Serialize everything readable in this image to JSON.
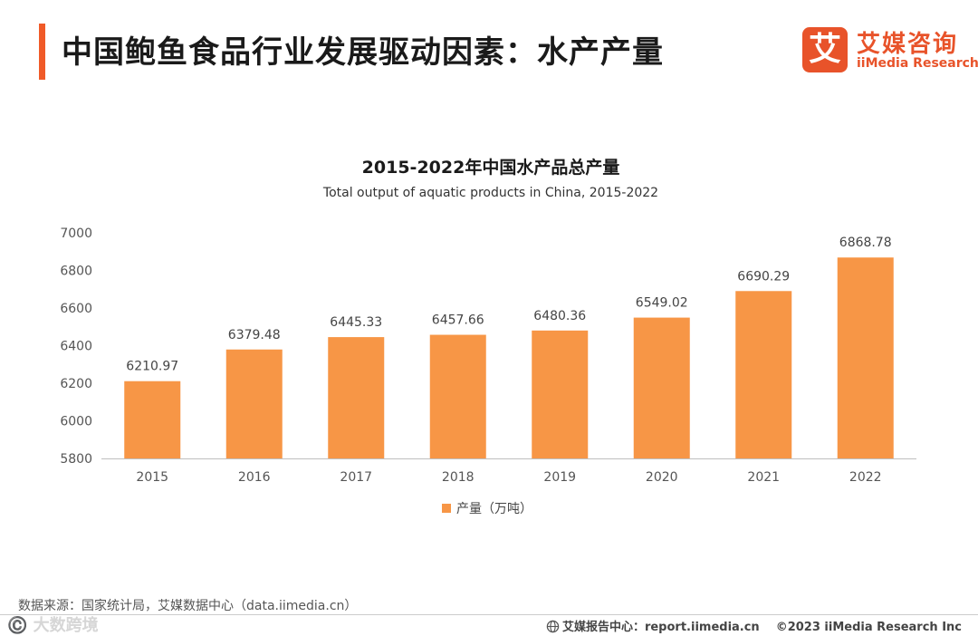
{
  "page": {
    "title": "中国鲍鱼食品行业发展驱动因素：水产产量",
    "accent_color": "#f05a28"
  },
  "logo": {
    "mark": "艾",
    "name_cn": "艾媒咨询",
    "name_en": "iiMedia Research",
    "color": "#e8532a"
  },
  "chart_data": {
    "type": "bar",
    "title": "2015-2022年中国水产品总产量",
    "subtitle": "Total output of aquatic products in China, 2015-2022",
    "categories": [
      "2015",
      "2016",
      "2017",
      "2018",
      "2019",
      "2020",
      "2021",
      "2022"
    ],
    "values": [
      6210.97,
      6379.48,
      6445.33,
      6457.66,
      6480.36,
      6549.02,
      6690.29,
      6868.78
    ],
    "value_labels": [
      "6210.97",
      "6379.48",
      "6445.33",
      "6457.66",
      "6480.36",
      "6549.02",
      "6690.29",
      "6868.78"
    ],
    "y_ticks": [
      "5800",
      "6000",
      "6200",
      "6400",
      "6600",
      "6800",
      "7000"
    ],
    "ylim": [
      5800,
      7000
    ],
    "xlabel": "",
    "ylabel": "",
    "grid": false,
    "legend": "bottom-center",
    "series_name": "产量（万吨）",
    "bar_color": "#f79646"
  },
  "source": {
    "text": "数据来源：国家统计局，艾媒数据中心（data.iimedia.cn）"
  },
  "footer": {
    "report_text": "艾媒报告中心：report.iimedia.cn",
    "copyright": "©2023 iiMedia Research Inc"
  },
  "watermark": {
    "text": "©️ 大数跨境"
  }
}
